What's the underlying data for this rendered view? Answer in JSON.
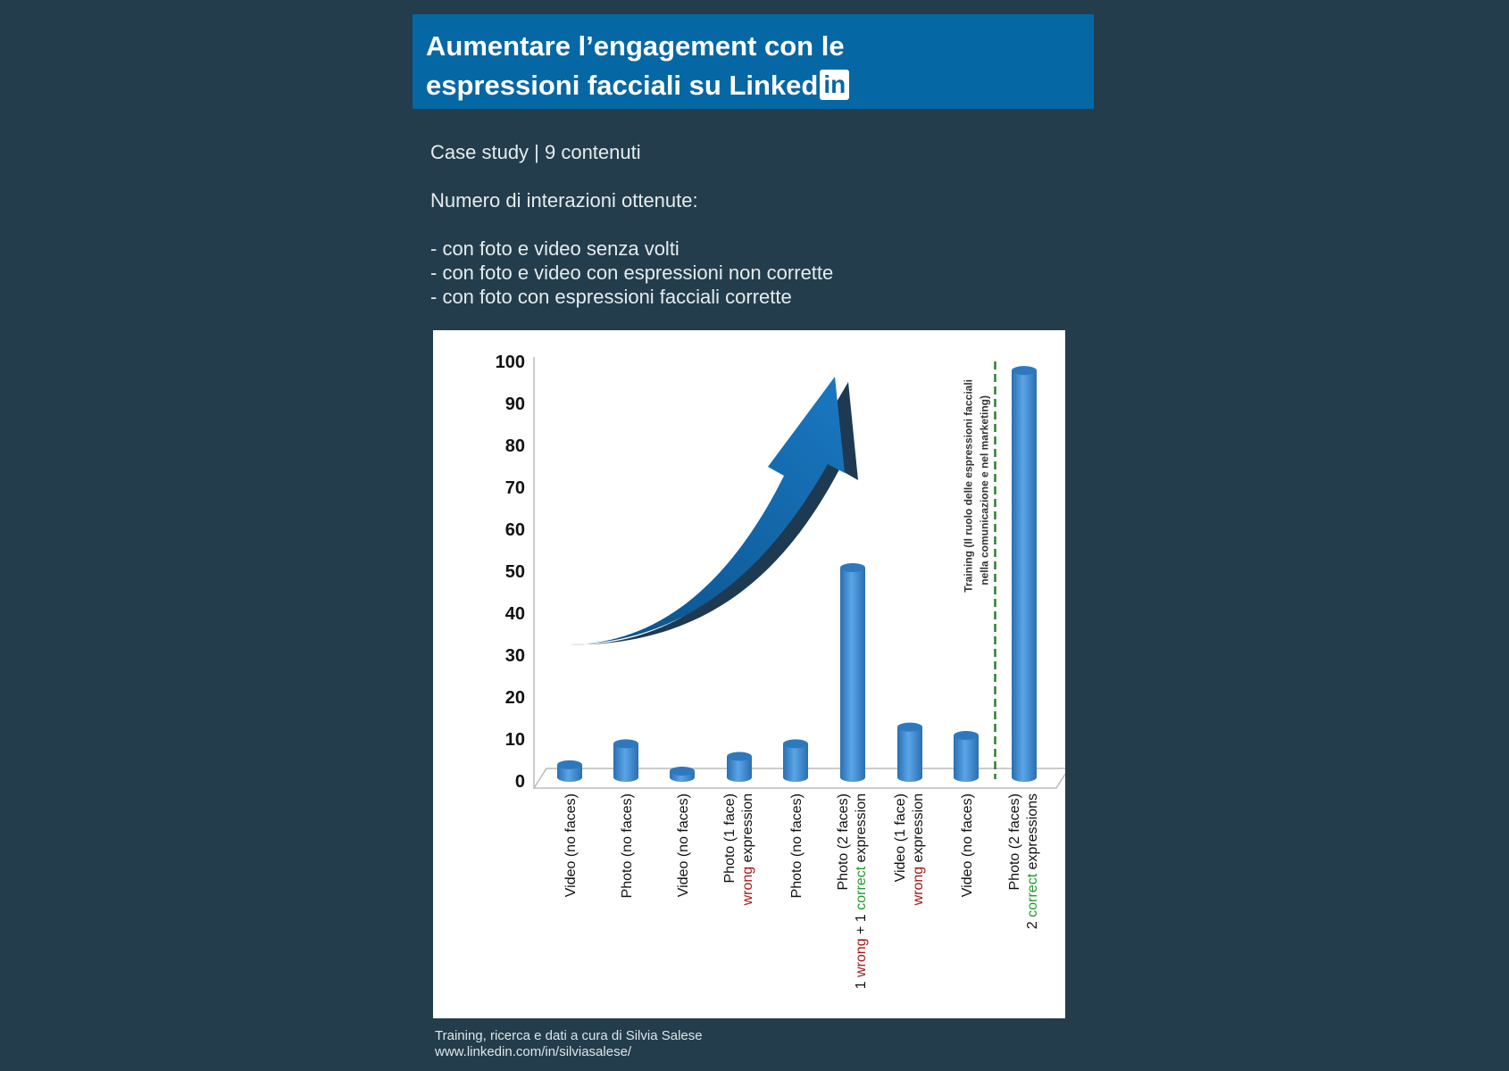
{
  "header": {
    "title_line1": "Aumentare l’engagement con le",
    "title_line2": "espressioni facciali su Linked",
    "logo_text": "in"
  },
  "intro": {
    "case_study": "Case study | 9 contenuti",
    "subtitle": "Numero di interazioni ottenute:",
    "bullets": [
      "- con foto e video senza volti",
      "- con foto e video con espressioni non corrette",
      "- con foto con espressioni facciali corrette"
    ]
  },
  "chart_data": {
    "type": "bar",
    "title": "",
    "xlabel": "",
    "ylabel": "",
    "ylim": [
      0,
      100
    ],
    "yticks": [
      0,
      10,
      20,
      30,
      40,
      50,
      60,
      70,
      80,
      90,
      100
    ],
    "categories": [
      [
        {
          "t": "Video (no faces)",
          "c": "#111"
        }
      ],
      [
        {
          "t": "Photo (no faces)",
          "c": "#111"
        }
      ],
      [
        {
          "t": "Video (no faces)",
          "c": "#111"
        }
      ],
      [
        {
          "t": "Photo (1 face)",
          "c": "#111"
        }
      ],
      [
        {
          "t": "Photo (no faces)",
          "c": "#111"
        }
      ],
      [
        {
          "t": "Photo (2 faces)",
          "c": "#111"
        }
      ],
      [
        {
          "t": "Video (1 face)",
          "c": "#111"
        }
      ],
      [
        {
          "t": "Video (no faces)",
          "c": "#111"
        }
      ],
      [
        {
          "t": "Photo (2 faces)",
          "c": "#111"
        }
      ]
    ],
    "category_line2": [
      "",
      "",
      "",
      "wrong| expression",
      "",
      "1 |wrong| + 1 |correct| expression",
      "wrong| expression",
      "",
      "2 |correct| expressions"
    ],
    "values": [
      3,
      8,
      1.5,
      5,
      8,
      50,
      12,
      10,
      97
    ],
    "annotation": {
      "text_line1": "Training (Il ruolo delle espressioni facciali",
      "text_line2": "nella comunicazione e nel marketing)",
      "divider_after_index": 7
    },
    "colors": {
      "bar": "#3d8fd6",
      "wrong": "#a31818",
      "correct": "#1f9a2a",
      "divider": "#2f7d2f"
    }
  },
  "footer": {
    "line1": "Training, ricerca e dati a cura di Silvia Salese",
    "line2": "www.linkedin.com/in/silviasalese/"
  }
}
